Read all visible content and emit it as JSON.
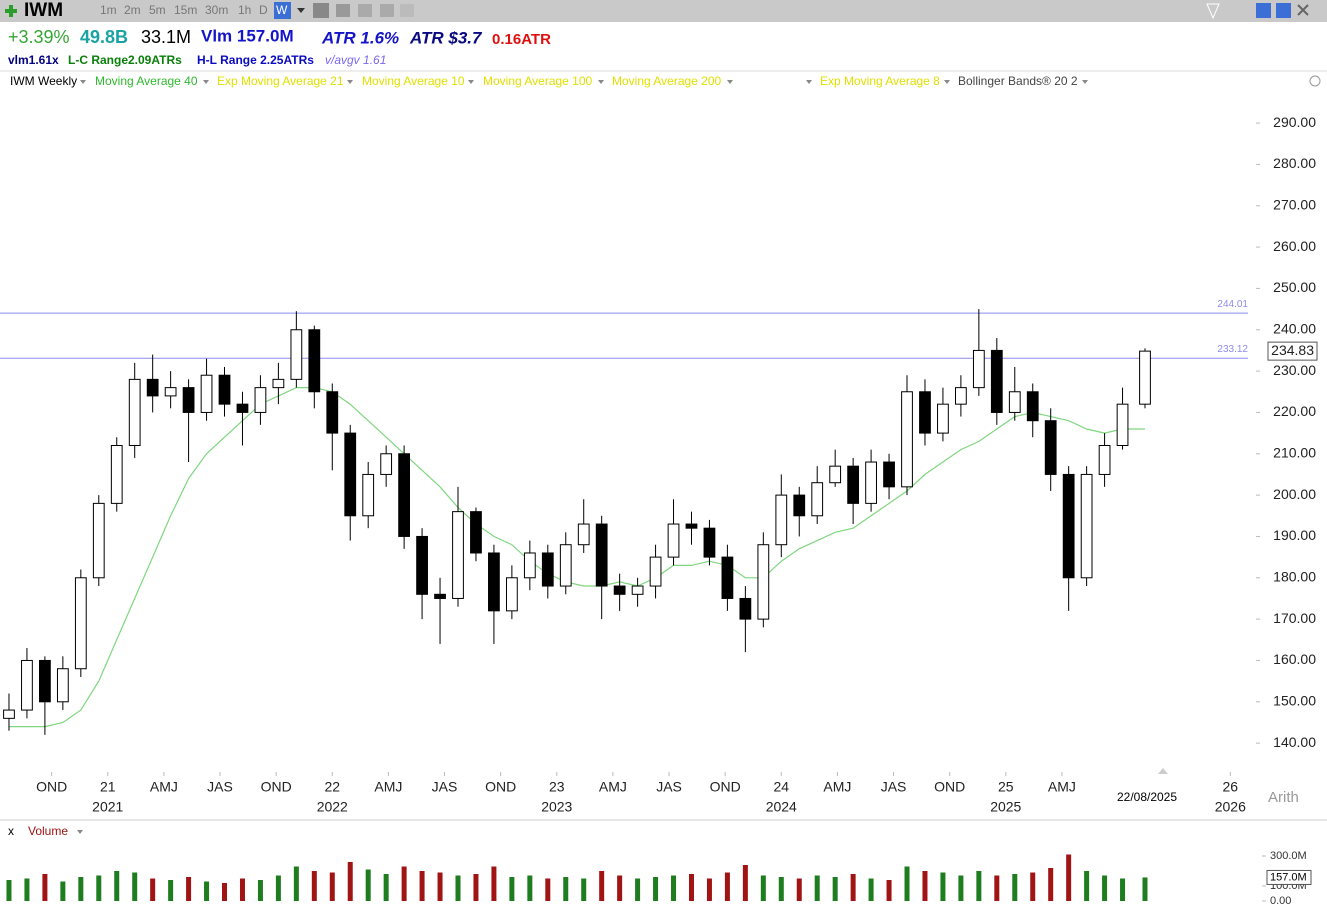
{
  "toolbar": {
    "symbol": "IWM",
    "intervals": [
      "1m",
      "2m",
      "5m",
      "15m",
      "30m",
      "1h",
      "D",
      "W"
    ],
    "selected": 7
  },
  "header": {
    "change": "+3.39%",
    "cap": "49.8B",
    "shares": "33.1M",
    "volume": "Vlm 157.0M",
    "atr_pct": "ATR 1.6%",
    "atr_usd": "ATR $3.7",
    "atr_move": "0.16ATR",
    "vlm": "vlm1.61x",
    "lc_range": "L-C Range2.09ATRs",
    "hl_range": "H-L Range 2.25ATRs",
    "vavgv": "v/avgv 1.61"
  },
  "legend": [
    "IWM Weekly",
    "Exp Moving Average 21",
    "Moving Average 10",
    "Moving Average 100",
    "Moving Average 200",
    "Exp Moving Average 8",
    "Bollinger Bands® 20 2"
  ],
  "chart_data": {
    "type": "candlestick",
    "scale": "Arith",
    "date_label": "22/08/2025",
    "xlim": [
      2020.52,
      2026.11
    ],
    "ylim": [
      133.5,
      298
    ],
    "yticks": [
      {
        "value": 140,
        "label": "140.00"
      },
      {
        "value": 150,
        "label": "150.00"
      },
      {
        "value": 160,
        "label": "160.00"
      },
      {
        "value": 170,
        "label": "170.00"
      },
      {
        "value": 180,
        "label": "180.00"
      },
      {
        "value": 190,
        "label": "190.00"
      },
      {
        "value": 200,
        "label": "200.00"
      },
      {
        "value": 210,
        "label": "210.00"
      },
      {
        "value": 220,
        "label": "220.00"
      },
      {
        "value": 230,
        "label": "230.00"
      },
      {
        "value": 240,
        "label": "240.00"
      },
      {
        "value": 250,
        "label": "250.00"
      },
      {
        "value": 260,
        "label": "260.00"
      },
      {
        "value": 270,
        "label": "270.00"
      },
      {
        "value": 280,
        "label": "280.00"
      },
      {
        "value": 290,
        "label": "290.00"
      }
    ],
    "xticks": [
      {
        "value": 2020.75,
        "label": "OND"
      },
      {
        "value": 2021,
        "label": "21"
      },
      {
        "value": 2021.25,
        "label": "AMJ"
      },
      {
        "value": 2021.5,
        "label": "JAS"
      },
      {
        "value": 2021.75,
        "label": "OND"
      },
      {
        "value": 2022,
        "label": "22"
      },
      {
        "value": 2022.25,
        "label": "AMJ"
      },
      {
        "value": 2022.5,
        "label": "JAS"
      },
      {
        "value": 2022.75,
        "label": "OND"
      },
      {
        "value": 2023,
        "label": "23"
      },
      {
        "value": 2023.25,
        "label": "AMJ"
      },
      {
        "value": 2023.5,
        "label": "JAS"
      },
      {
        "value": 2023.75,
        "label": "OND"
      },
      {
        "value": 2024,
        "label": "24"
      },
      {
        "value": 2024.25,
        "label": "AMJ"
      },
      {
        "value": 2024.5,
        "label": "JAS"
      },
      {
        "value": 2024.75,
        "label": "OND"
      },
      {
        "value": 2025,
        "label": "25"
      },
      {
        "value": 2025.25,
        "label": "AMJ"
      },
      {
        "value": 2026,
        "label": "26"
      }
    ],
    "xticks_years": [
      {
        "value": 2021,
        "label": "2021"
      },
      {
        "value": 2022,
        "label": "2022"
      },
      {
        "value": 2023,
        "label": "2023"
      },
      {
        "value": 2024,
        "label": "2024"
      },
      {
        "value": 2025,
        "label": "2025"
      },
      {
        "value": 2026,
        "label": "2026"
      }
    ],
    "hlines": [
      244.01,
      233.12
    ],
    "hline_color": "#8c8cf0",
    "last_price": 234.83,
    "up_color": "#ffffff",
    "down_color": "#000000",
    "x": [
      2020.56,
      2020.64,
      2020.72,
      2020.8,
      2020.88,
      2020.96,
      2021.04,
      2021.12,
      2021.2,
      2021.28,
      2021.36,
      2021.44,
      2021.52,
      2021.6,
      2021.68,
      2021.76,
      2021.84,
      2021.92,
      2022.0,
      2022.08,
      2022.16,
      2022.24,
      2022.32,
      2022.4,
      2022.48,
      2022.56,
      2022.64,
      2022.72,
      2022.8,
      2022.88,
      2022.96,
      2023.04,
      2023.12,
      2023.2,
      2023.28,
      2023.36,
      2023.44,
      2023.52,
      2023.6,
      2023.68,
      2023.76,
      2023.84,
      2023.92,
      2024.0,
      2024.08,
      2024.16,
      2024.24,
      2024.32,
      2024.4,
      2024.48,
      2024.56,
      2024.64,
      2024.72,
      2024.8,
      2024.88,
      2024.96,
      2025.04,
      2025.12,
      2025.2,
      2025.28,
      2025.36,
      2025.44,
      2025.52,
      2025.62
    ],
    "open": [
      146,
      148,
      160,
      150,
      158,
      180,
      198,
      212,
      228,
      224,
      226,
      220,
      229,
      222,
      220,
      226,
      228,
      240,
      225,
      215,
      195,
      205,
      210,
      190,
      176,
      175,
      196,
      186,
      172,
      180,
      186,
      178,
      188,
      193,
      178,
      176,
      178,
      185,
      193,
      192,
      185,
      175,
      170,
      188,
      200,
      195,
      203,
      207,
      198,
      208,
      202,
      225,
      215,
      222,
      226,
      235,
      220,
      225,
      218,
      205,
      180,
      205,
      212,
      222
    ],
    "high": [
      152,
      163,
      161,
      161,
      182,
      200,
      214,
      232,
      234,
      230,
      228,
      233,
      231,
      225,
      229,
      232,
      244.5,
      241,
      227,
      217,
      208,
      212,
      212,
      192,
      180,
      202,
      197,
      188,
      183,
      189,
      188,
      191,
      199,
      195,
      181,
      180,
      188,
      199,
      196,
      194,
      188,
      178,
      191,
      205,
      202,
      207,
      211,
      209,
      211,
      210,
      229,
      228,
      226,
      229,
      245,
      238,
      231,
      227,
      221,
      207,
      207,
      215,
      226,
      235.5
    ],
    "low": [
      143,
      146,
      142,
      148,
      156,
      178,
      196,
      209,
      220,
      221,
      208,
      218,
      219,
      212,
      217,
      222,
      226,
      221,
      206,
      189,
      192,
      202,
      187,
      170,
      164,
      173,
      184,
      164,
      170,
      177,
      175,
      176,
      186,
      170,
      172,
      173,
      175,
      183,
      188,
      183,
      172,
      162,
      168,
      185,
      190,
      193,
      202,
      193,
      196,
      199,
      200,
      212,
      213,
      219,
      224,
      217,
      218,
      214,
      201,
      172,
      178,
      202,
      211,
      221
    ],
    "close": [
      148,
      160,
      150,
      158,
      180,
      198,
      212,
      228,
      224,
      226,
      220,
      229,
      222,
      220,
      226,
      228,
      240,
      225,
      215,
      195,
      205,
      210,
      190,
      176,
      175,
      196,
      186,
      172,
      180,
      186,
      178,
      188,
      193,
      178,
      176,
      178,
      185,
      193,
      192,
      185,
      175,
      170,
      188,
      200,
      195,
      203,
      207,
      198,
      208,
      202,
      225,
      215,
      222,
      226,
      235,
      220,
      225,
      218,
      205,
      180,
      205,
      212,
      222,
      234.83
    ],
    "series": [
      {
        "name": "Moving Average 40",
        "color": "#7fd67f",
        "values": [
          144,
          144,
          144,
          145,
          148,
          155,
          165,
          175,
          185,
          195,
          204,
          210,
          214,
          218,
          222,
          224,
          226,
          226,
          225,
          222,
          218,
          214,
          210,
          206,
          202,
          197,
          193,
          190,
          188,
          184,
          181,
          179,
          178,
          178,
          179,
          178,
          180,
          183,
          183,
          184,
          183,
          180,
          180,
          184,
          187,
          189,
          191,
          192,
          195,
          198,
          201,
          205,
          208,
          211,
          213,
          216,
          219,
          220,
          219,
          218,
          216,
          215,
          216,
          216
        ]
      }
    ]
  },
  "volume": {
    "title": "Volume",
    "close_label": "x",
    "vlim": [
      0,
      300
    ],
    "ticks": [
      {
        "value": 300,
        "label": "300.0M"
      },
      {
        "value": 100,
        "label": "100.0M"
      },
      {
        "value": 0,
        "label": "0.00"
      }
    ],
    "last": {
      "value": 157,
      "label": "157.0M"
    },
    "up_color": "#1e7d1e",
    "down_color": "#a01414",
    "values": [
      140,
      150,
      180,
      130,
      160,
      170,
      200,
      190,
      150,
      140,
      160,
      130,
      120,
      150,
      140,
      170,
      230,
      200,
      190,
      260,
      210,
      180,
      230,
      200,
      190,
      170,
      180,
      230,
      160,
      170,
      150,
      160,
      150,
      200,
      170,
      150,
      160,
      170,
      180,
      150,
      190,
      240,
      170,
      160,
      150,
      170,
      160,
      180,
      150,
      140,
      230,
      200,
      190,
      170,
      200,
      170,
      180,
      190,
      220,
      310,
      200,
      170,
      150,
      157
    ]
  }
}
